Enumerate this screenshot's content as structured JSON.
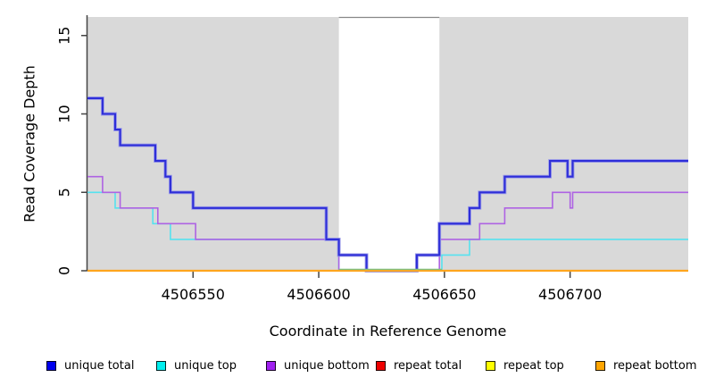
{
  "chart_data": {
    "type": "line",
    "subtype": "step",
    "xlabel": "Coordinate in Reference Genome",
    "ylabel": "Read Coverage Depth",
    "xlim": [
      4506508,
      4506747
    ],
    "ylim": [
      0,
      16.2
    ],
    "x_ticks": [
      4506550,
      4506600,
      4506650,
      4506700
    ],
    "y_ticks": [
      0,
      5,
      10,
      15
    ],
    "grid": false,
    "plot_bg": "#d9d9d9",
    "highlight_band": {
      "x_from": 4506608,
      "x_to": 4506648,
      "color": "#ffffff",
      "top_edge_color": "#888888"
    },
    "zero_overlap_tint": {
      "x_from": 4506608,
      "x_to": 4506649,
      "value": 0,
      "color": "#7fbf7f"
    },
    "series": [
      {
        "name": "unique top",
        "color": "#55e2ef",
        "width": 1.6,
        "steps": [
          [
            4506508,
            5
          ],
          [
            4506519,
            4
          ],
          [
            4506534,
            3
          ],
          [
            4506541,
            2
          ],
          [
            4506608,
            0
          ],
          [
            4506649,
            1
          ],
          [
            4506660,
            2
          ]
        ]
      },
      {
        "name": "unique bottom",
        "color": "#ae63e3",
        "width": 1.6,
        "steps": [
          [
            4506508,
            6
          ],
          [
            4506514,
            5
          ],
          [
            4506521,
            4
          ],
          [
            4506536,
            3
          ],
          [
            4506551,
            2
          ],
          [
            4506608,
            0
          ],
          [
            4506648,
            2
          ],
          [
            4506664,
            3
          ],
          [
            4506674,
            4
          ],
          [
            4506693,
            5
          ],
          [
            4506700,
            4
          ],
          [
            4506701,
            5
          ]
        ]
      },
      {
        "name": "unique total",
        "color": "#2e2ed8",
        "halo": "#9d9de8",
        "width": 2.1,
        "steps": [
          [
            4506508,
            11
          ],
          [
            4506514,
            10
          ],
          [
            4506519,
            9
          ],
          [
            4506521,
            8
          ],
          [
            4506535,
            7
          ],
          [
            4506539,
            6
          ],
          [
            4506541,
            5
          ],
          [
            4506550,
            4
          ],
          [
            4506603,
            2
          ],
          [
            4506608,
            1
          ],
          [
            4506619,
            0
          ],
          [
            4506639,
            1
          ],
          [
            4506648,
            3
          ],
          [
            4506660,
            4
          ],
          [
            4506664,
            5
          ],
          [
            4506674,
            6
          ],
          [
            4506692,
            7
          ],
          [
            4506699,
            6
          ],
          [
            4506701,
            7
          ]
        ]
      },
      {
        "name": "repeat total",
        "color": "#e00000",
        "width": 1.8,
        "steps": [
          [
            4506508,
            0
          ]
        ]
      },
      {
        "name": "repeat top",
        "color": "#f0f000",
        "width": 1.8,
        "steps": [
          [
            4506508,
            0
          ]
        ]
      },
      {
        "name": "repeat bottom",
        "color": "#ffa51e",
        "width": 2.2,
        "steps": [
          [
            4506508,
            0
          ]
        ]
      }
    ],
    "legend": [
      {
        "label": "unique total",
        "color": "#0000ee"
      },
      {
        "label": "unique top",
        "color": "#00eeee"
      },
      {
        "label": "unique bottom",
        "color": "#a020f0"
      },
      {
        "label": "repeat total",
        "color": "#ee0000"
      },
      {
        "label": "repeat top",
        "color": "#ffff00"
      },
      {
        "label": "repeat bottom",
        "color": "#ffa500"
      }
    ],
    "axis_color": "#444444",
    "tick_label_color": "#000000"
  }
}
